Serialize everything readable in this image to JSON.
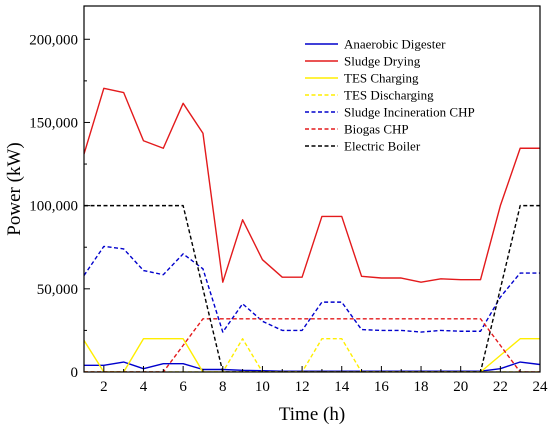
{
  "chart_data": {
    "type": "line",
    "xlabel": "Time (h)",
    "ylabel": "Power (kW)",
    "xlim": [
      1,
      24
    ],
    "ylim": [
      0,
      220000
    ],
    "xticks": [
      2,
      4,
      6,
      8,
      10,
      12,
      14,
      16,
      18,
      20,
      22,
      24
    ],
    "yticks": [
      0,
      50000,
      100000,
      150000,
      200000
    ],
    "ytick_labels": [
      "0",
      "50,000",
      "100,000",
      "150,000",
      "200,000"
    ],
    "grid": false,
    "legend_position": "top-right",
    "x": [
      1,
      2,
      3,
      4,
      5,
      6,
      7,
      8,
      9,
      10,
      11,
      12,
      13,
      14,
      15,
      16,
      17,
      18,
      19,
      20,
      21,
      22,
      23,
      24
    ],
    "series": [
      {
        "name": "Anaerobic Digester",
        "color": "#0000cc",
        "dash": "solid",
        "values": [
          4000,
          4000,
          6000,
          2000,
          5000,
          5000,
          1500,
          1500,
          1000,
          800,
          500,
          500,
          500,
          500,
          500,
          500,
          500,
          500,
          500,
          500,
          500,
          2000,
          6000,
          4500
        ]
      },
      {
        "name": "Sludge Drying",
        "color": "#e31a1c",
        "dash": "solid",
        "values": [
          131000,
          170500,
          168000,
          139000,
          134500,
          161500,
          143500,
          54000,
          91500,
          67500,
          57000,
          57000,
          93500,
          93500,
          57500,
          56500,
          56500,
          54000,
          56000,
          55500,
          55500,
          100000,
          134500,
          134500
        ]
      },
      {
        "name": "TES Charging",
        "color": "#ffee00",
        "dash": "solid",
        "values": [
          19000,
          0,
          0,
          20000,
          20000,
          20000,
          0,
          0,
          0,
          0,
          0,
          0,
          0,
          0,
          0,
          0,
          0,
          0,
          0,
          0,
          0,
          10000,
          20000,
          20000
        ]
      },
      {
        "name": "TES Discharging",
        "color": "#ffee00",
        "dash": "dashed",
        "values": [
          0,
          0,
          0,
          0,
          0,
          0,
          0,
          0,
          20000,
          0,
          0,
          0,
          20000,
          20000,
          0,
          0,
          0,
          0,
          0,
          0,
          0,
          0,
          0,
          0
        ]
      },
      {
        "name": "Sludge Incineration CHP",
        "color": "#0000cc",
        "dash": "dashed",
        "values": [
          58000,
          75500,
          74000,
          61000,
          58500,
          71000,
          62000,
          24000,
          41000,
          30500,
          25000,
          25000,
          42000,
          42000,
          25500,
          25000,
          25000,
          24000,
          25000,
          24500,
          24500,
          45000,
          59500,
          59500
        ]
      },
      {
        "name": "Biogas CHP",
        "color": "#e31a1c",
        "dash": "dashed",
        "values": [
          0,
          0,
          0,
          0,
          0,
          16000,
          32000,
          32000,
          32000,
          32000,
          32000,
          32000,
          32000,
          32000,
          32000,
          32000,
          32000,
          32000,
          32000,
          32000,
          32000,
          16000,
          0,
          0
        ]
      },
      {
        "name": "Electric Boiler",
        "color": "#000000",
        "dash": "dashed",
        "values": [
          100000,
          100000,
          100000,
          100000,
          100000,
          100000,
          50000,
          0,
          0,
          0,
          0,
          0,
          0,
          0,
          0,
          0,
          0,
          0,
          0,
          0,
          0,
          50000,
          100000,
          100000
        ]
      }
    ]
  }
}
